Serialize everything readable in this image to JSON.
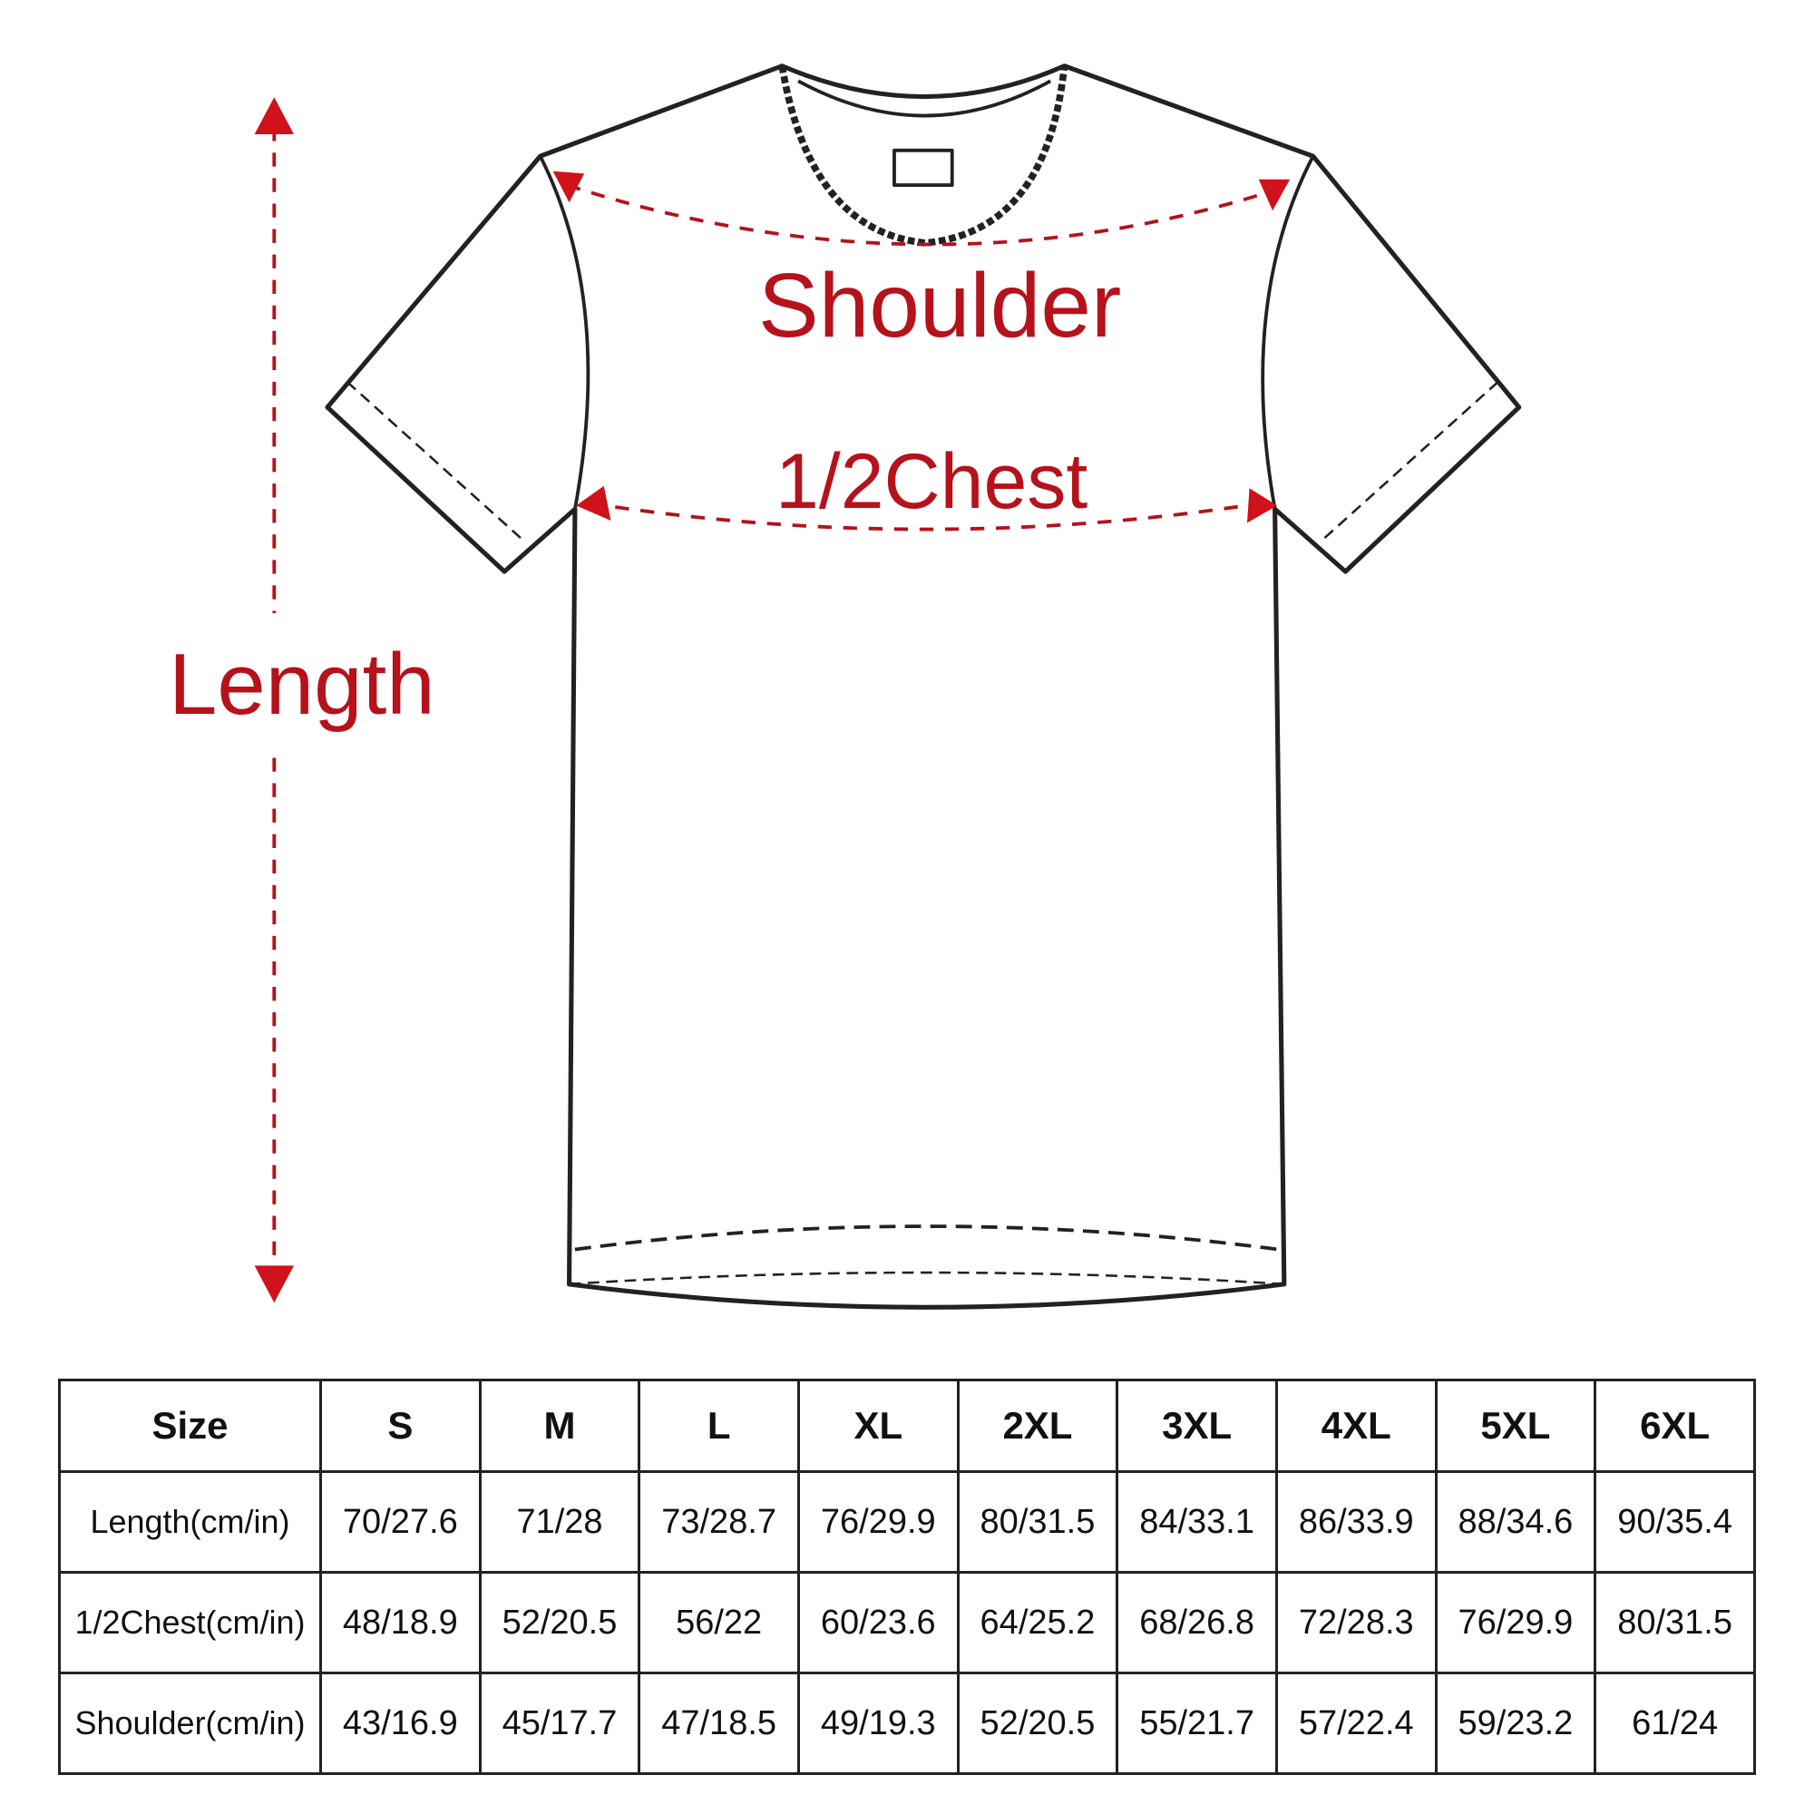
{
  "labels": {
    "shoulder": "Shoulder",
    "chest": "1/2Chest",
    "length": "Length"
  },
  "colors": {
    "accent": "#b5121b",
    "outline": "#222222"
  },
  "table": {
    "headers": [
      "Size",
      "S",
      "M",
      "L",
      "XL",
      "2XL",
      "3XL",
      "4XL",
      "5XL",
      "6XL"
    ],
    "rows": [
      {
        "label": "Length(cm/in)",
        "values": [
          "70/27.6",
          "71/28",
          "73/28.7",
          "76/29.9",
          "80/31.5",
          "84/33.1",
          "86/33.9",
          "88/34.6",
          "90/35.4"
        ]
      },
      {
        "label": "1/2Chest(cm/in)",
        "values": [
          "48/18.9",
          "52/20.5",
          "56/22",
          "60/23.6",
          "64/25.2",
          "68/26.8",
          "72/28.3",
          "76/29.9",
          "80/31.5"
        ]
      },
      {
        "label": "Shoulder(cm/in)",
        "values": [
          "43/16.9",
          "45/17.7",
          "47/18.5",
          "49/19.3",
          "52/20.5",
          "55/21.7",
          "57/22.4",
          "59/23.2",
          "61/24"
        ]
      }
    ]
  }
}
